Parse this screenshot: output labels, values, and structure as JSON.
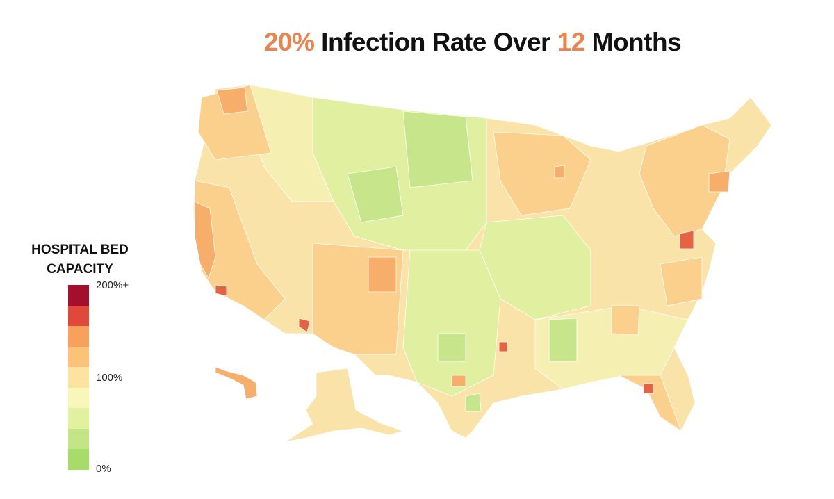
{
  "title": {
    "pre": "20%",
    "mid": " Infection Rate Over ",
    "num": "12",
    "post": " Months"
  },
  "legend": {
    "title_line1": "HOSPITAL BED",
    "title_line2": "CAPACITY",
    "ticks": [
      "200%+",
      "100%",
      "0%"
    ],
    "colors": [
      "#a50f2e",
      "#e1473a",
      "#f7a15c",
      "#fbc27a",
      "#fde2a0",
      "#f8f6b8",
      "#e2f1a0",
      "#c4e585",
      "#a8dc6a"
    ]
  },
  "map_colors": {
    "base": "#f9e3a8",
    "land_light": "#f5efb2",
    "green_light": "#e0efa0",
    "green": "#c7e58a",
    "orange_light": "#fbd08d",
    "orange": "#f7ae6a",
    "red": "#e46342"
  }
}
